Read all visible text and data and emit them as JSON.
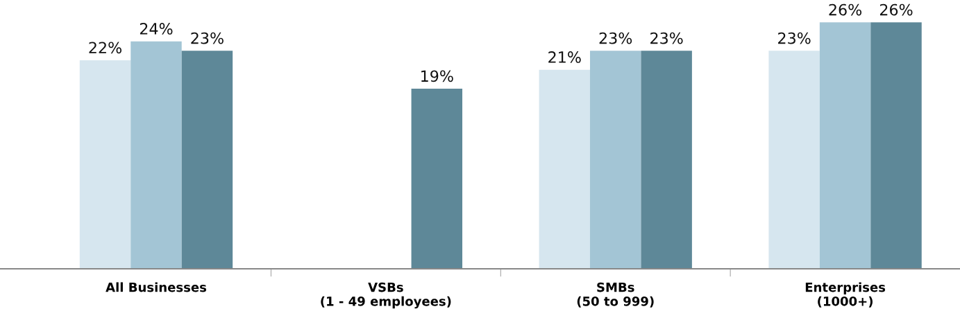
{
  "chart_data": {
    "type": "bar",
    "categories": [
      "All Businesses",
      "VSBs\n(1 - 49 employees)",
      "SMBs\n(50 to 999)",
      "Enterprises\n(1000+)"
    ],
    "series": [
      {
        "color": "#d6e6ef",
        "values": [
          22,
          null,
          21,
          23
        ],
        "value_labels": [
          "22%",
          null,
          "21%",
          "23%"
        ]
      },
      {
        "color": "#a3c5d5",
        "values": [
          24,
          null,
          23,
          26
        ],
        "value_labels": [
          "24%",
          null,
          "23%",
          "26%"
        ]
      },
      {
        "color": "#5e8898",
        "values": [
          23,
          19,
          23,
          26
        ],
        "value_labels": [
          "23%",
          "19%",
          "23%",
          "26%"
        ]
      }
    ],
    "tick_labels": "x",
    "grid": false,
    "legend": false
  }
}
